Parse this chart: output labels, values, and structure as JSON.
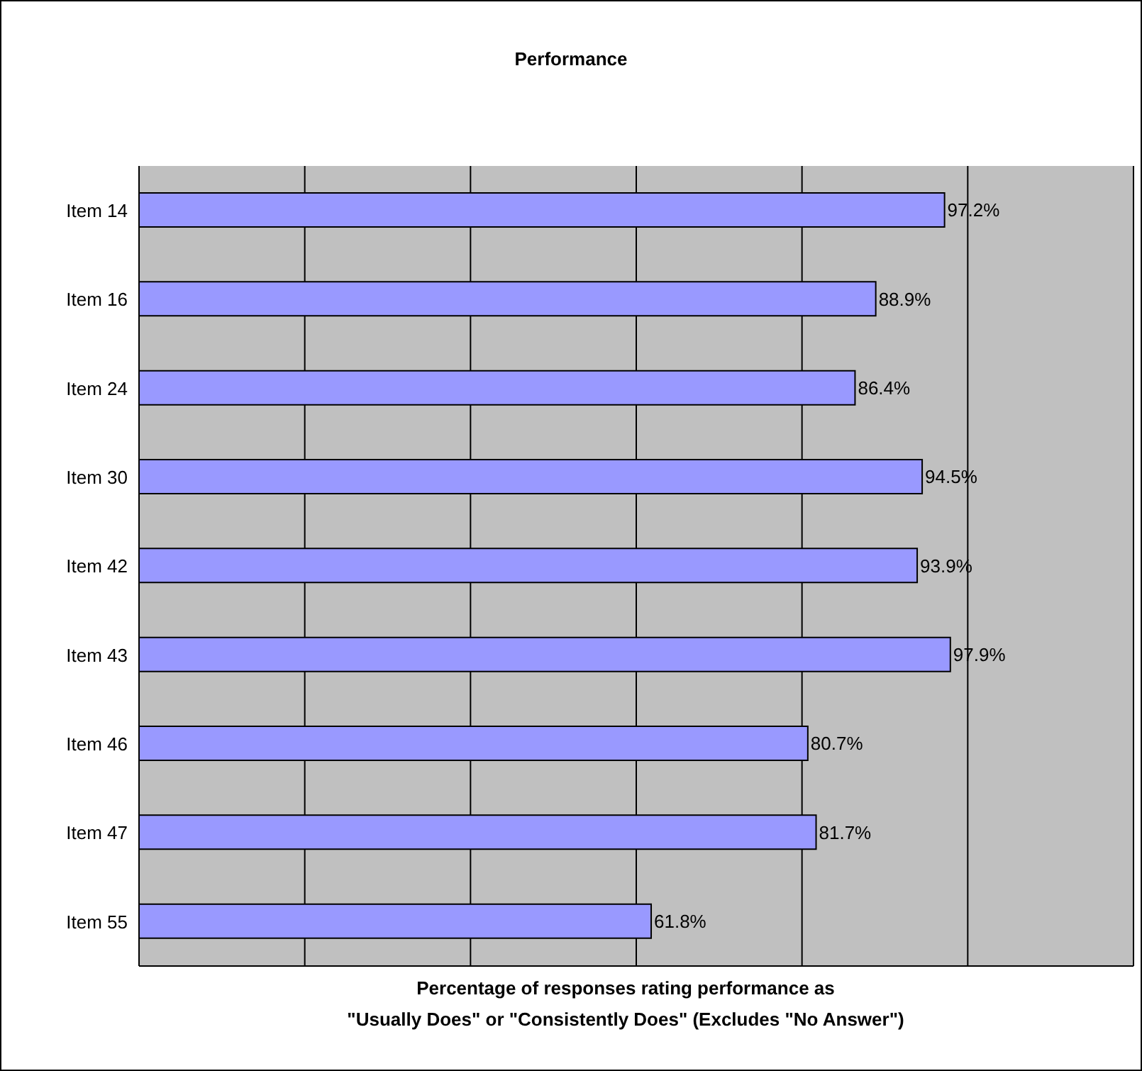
{
  "chart_data": {
    "type": "bar",
    "orientation": "horizontal",
    "title": "Performance",
    "xlabel": "Percentage of responses rating performance as\n\"Usually Does\" or \"Consistently Does\" (Excludes \"No Answer\")",
    "categories": [
      "Item 14",
      "Item 16",
      "Item 24",
      "Item 30",
      "Item 42",
      "Item 43",
      "Item 46",
      "Item 47",
      "Item 55"
    ],
    "values": [
      97.2,
      88.9,
      86.4,
      94.5,
      93.9,
      97.9,
      80.7,
      81.7,
      61.8
    ],
    "value_labels": [
      "97.2%",
      "88.9%",
      "86.4%",
      "94.5%",
      "93.9%",
      "97.9%",
      "80.7%",
      "81.7%",
      "61.8%"
    ],
    "color": "#9999ff",
    "xlim": [
      0,
      120
    ],
    "xticks": [
      {
        "value": 0,
        "label": null
      },
      {
        "value": 20,
        "label": null
      },
      {
        "value": 40,
        "label": null
      },
      {
        "value": 60,
        "label": null
      },
      {
        "value": 80,
        "label": null
      },
      {
        "value": 100,
        "label": null
      },
      {
        "value": 120,
        "label": null
      }
    ],
    "tick_labels": "y",
    "grid": "x",
    "legend": false
  }
}
